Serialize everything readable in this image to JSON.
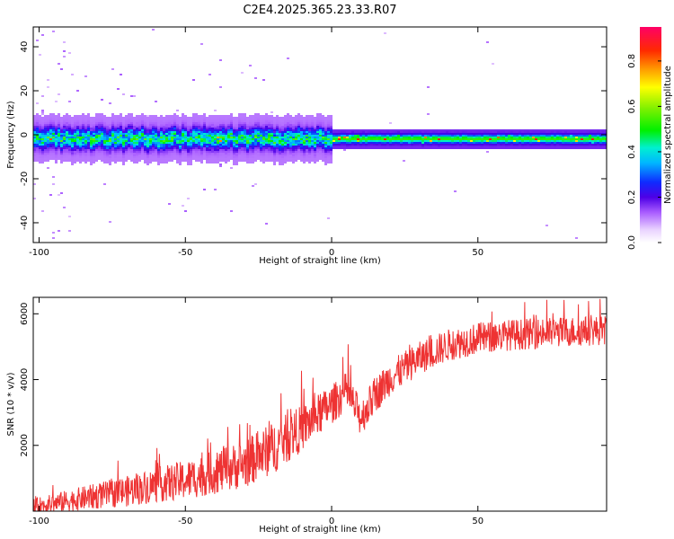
{
  "title": "C2E4.2025.365.23.33.R07",
  "chart_data": [
    {
      "type": "heatmap",
      "xlabel": "Height of straight line (km)",
      "ylabel": "Frequency (Hz)",
      "xlim": [
        -102,
        94
      ],
      "ylim": [
        -49,
        49
      ],
      "xticks": [
        -100,
        -50,
        0,
        50
      ],
      "xtick_labels": [
        "-100",
        "-50",
        "0",
        "50"
      ],
      "yticks": [
        -40,
        -20,
        0,
        20,
        40
      ],
      "ytick_labels": [
        "-40",
        "-20",
        "0",
        "20",
        "40"
      ],
      "colorbar": {
        "label": "Normalized spectral amplitude",
        "range": [
          0,
          0.95
        ],
        "ticks": [
          0.0,
          0.2,
          0.4,
          0.6,
          0.8
        ],
        "tick_labels": [
          "0.0",
          "0.2",
          "0.4",
          "0.6",
          "0.8"
        ]
      },
      "band": {
        "center_hz": -1.5,
        "wide_halfwidth_hz": 6,
        "narrow_halfwidth_hz": 2.5,
        "transition_km": 0
      }
    },
    {
      "type": "line",
      "xlabel": "Height of straight line (km)",
      "ylabel": "SNR (10 * v/v)",
      "xlim": [
        -102,
        94
      ],
      "ylim": [
        0,
        6500
      ],
      "xticks": [
        -100,
        -50,
        0,
        50
      ],
      "xtick_labels": [
        "-100",
        "-50",
        "0",
        "50"
      ],
      "yticks": [
        2000,
        4000,
        6000
      ],
      "ytick_labels": [
        "2000",
        "4000",
        "6000"
      ],
      "color": "#ee3333",
      "trend": {
        "x": [
          -102,
          -90,
          -80,
          -70,
          -60,
          -50,
          -40,
          -30,
          -20,
          -10,
          0,
          5,
          10,
          15,
          20,
          30,
          40,
          50,
          60,
          70,
          80,
          94
        ],
        "y": [
          150,
          350,
          500,
          650,
          850,
          1000,
          1250,
          1500,
          2000,
          2600,
          3300,
          3700,
          2900,
          3600,
          4100,
          4700,
          5100,
          5300,
          5400,
          5450,
          5500,
          5550
        ]
      },
      "noise_amplitude": [
        {
          "x": -102,
          "amp": 500
        },
        {
          "x": -20,
          "amp": 1600
        },
        {
          "x": 0,
          "amp": 1200
        },
        {
          "x": 30,
          "amp": 1000
        },
        {
          "x": 94,
          "amp": 900
        }
      ]
    }
  ]
}
